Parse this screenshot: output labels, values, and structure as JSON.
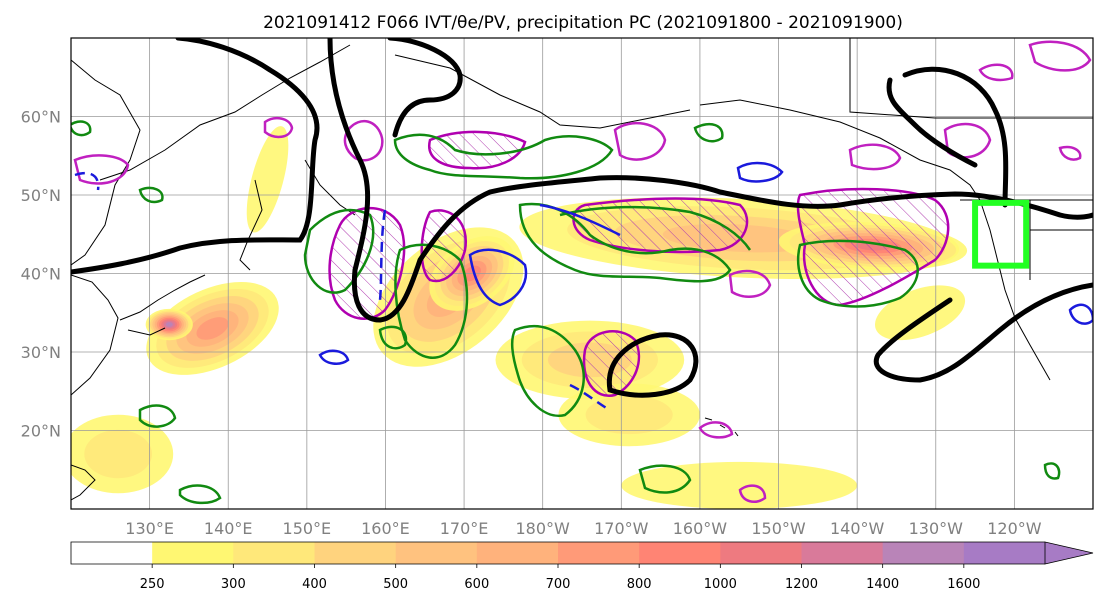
{
  "chart_data": {
    "type": "heatmap",
    "title": "2021091412 F066 IVT/θe/PV, precipitation PC (2021091800 - 2021091900)",
    "map": {
      "projection": "PlateCarree",
      "lon_range": [
        120,
        250
      ],
      "lat_range": [
        10,
        70
      ],
      "grid": true,
      "lat_ticks": [
        {
          "value": 20,
          "label": "20°N"
        },
        {
          "value": 30,
          "label": "30°N"
        },
        {
          "value": 40,
          "label": "40°N"
        },
        {
          "value": 50,
          "label": "50°N"
        },
        {
          "value": 60,
          "label": "60°N"
        }
      ],
      "lon_ticks": [
        {
          "value": 130,
          "label": "130°E"
        },
        {
          "value": 140,
          "label": "140°E"
        },
        {
          "value": 150,
          "label": "150°E"
        },
        {
          "value": 160,
          "label": "160°E"
        },
        {
          "value": 170,
          "label": "170°E"
        },
        {
          "value": 180,
          "label": "180°W"
        },
        {
          "value": 190,
          "label": "170°W"
        },
        {
          "value": 200,
          "label": "160°W"
        },
        {
          "value": 210,
          "label": "150°W"
        },
        {
          "value": 220,
          "label": "140°W"
        },
        {
          "value": 230,
          "label": "130°W"
        },
        {
          "value": 240,
          "label": "120°W"
        }
      ],
      "target_box": {
        "lon": [
          235,
          241.5
        ],
        "lat": [
          41,
          49
        ],
        "color": "#22ff22"
      }
    },
    "colorbar": {
      "levels": [
        250,
        300,
        400,
        500,
        600,
        700,
        800,
        1000,
        1200,
        1400,
        1600
      ],
      "labels": [
        "250",
        "300",
        "400",
        "500",
        "600",
        "700",
        "800",
        "1000",
        "1200",
        "1400",
        "1600"
      ],
      "colors": [
        "#ffffff",
        "#fff772",
        "#ffe87a",
        "#ffd37e",
        "#ffc27f",
        "#ffb27c",
        "#ff9a78",
        "#ff8474",
        "#ee7a80",
        "#d97a9a",
        "#b984b8",
        "#a77bc5"
      ],
      "extend": "max"
    },
    "ivt_blobs": [
      {
        "lon": 138,
        "lat": 33,
        "rx": 9,
        "ry": 5,
        "rot": -25,
        "level": 6
      },
      {
        "lon": 132.5,
        "lat": 33.5,
        "rx": 3,
        "ry": 2,
        "rot": 0,
        "level": 10
      },
      {
        "lon": 168,
        "lat": 37,
        "rx": 11,
        "ry": 7,
        "rot": -40,
        "level": 5
      },
      {
        "lon": 171,
        "lat": 40,
        "rx": 6,
        "ry": 4,
        "rot": -35,
        "level": 7
      },
      {
        "lon": 186,
        "lat": 29,
        "rx": 12,
        "ry": 5,
        "rot": 0,
        "level": 3
      },
      {
        "lon": 205,
        "lat": 44.5,
        "rx": 28,
        "ry": 5,
        "rot": 3,
        "level": 4
      },
      {
        "lon": 222,
        "lat": 43.5,
        "rx": 12,
        "ry": 3,
        "rot": 3,
        "level": 8
      },
      {
        "lon": 191,
        "lat": 22,
        "rx": 9,
        "ry": 4,
        "rot": 0,
        "level": 2
      },
      {
        "lon": 205,
        "lat": 13,
        "rx": 15,
        "ry": 3,
        "rot": 0,
        "level": 1
      },
      {
        "lon": 126,
        "lat": 17,
        "rx": 7,
        "ry": 5,
        "rot": 0,
        "level": 2
      },
      {
        "lon": 145,
        "lat": 52,
        "rx": 2,
        "ry": 7,
        "rot": 15,
        "level": 1
      },
      {
        "lon": 228,
        "lat": 35,
        "rx": 6,
        "ry": 3,
        "rot": -20,
        "level": 1
      }
    ]
  }
}
